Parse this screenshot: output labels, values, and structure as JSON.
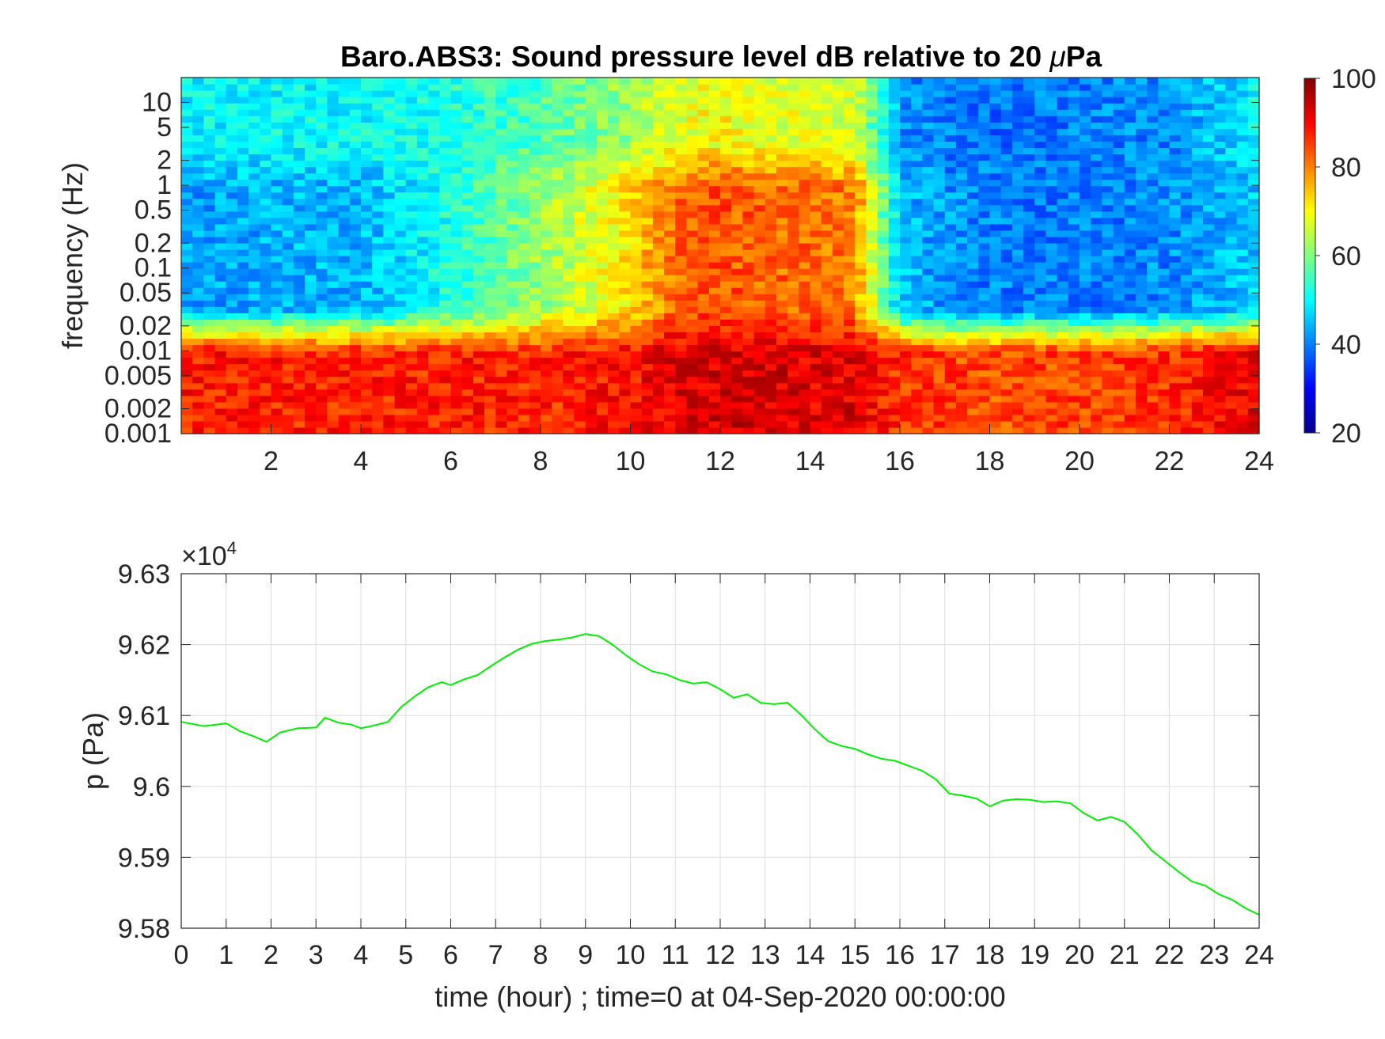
{
  "chart_data": [
    {
      "type": "heatmap",
      "title_parts": [
        "Baro.ABS3: Sound pressure level dB relative to 20 ",
        "μ",
        "Pa"
      ],
      "ylabel": "frequency (Hz)",
      "xlabel": "",
      "y_scale": "log",
      "yticks": [
        "10",
        "5",
        "2",
        "1",
        "0.5",
        "0.2",
        "0.1",
        "0.05",
        "0.02",
        "0.01",
        "0.005",
        "0.002",
        "0.001"
      ],
      "ytick_values": [
        10,
        5,
        2,
        1,
        0.5,
        0.2,
        0.1,
        0.05,
        0.02,
        0.01,
        0.005,
        0.002,
        0.001
      ],
      "ylim": [
        0.001,
        20
      ],
      "xticks": [
        "2",
        "4",
        "6",
        "8",
        "10",
        "12",
        "14",
        "16",
        "18",
        "20",
        "22",
        "24"
      ],
      "xtick_values": [
        2,
        4,
        6,
        8,
        10,
        12,
        14,
        16,
        18,
        20,
        22,
        24
      ],
      "xlim": [
        0,
        24
      ],
      "colormap": "jet",
      "colorbar": {
        "ticks": [
          "100",
          "80",
          "60",
          "40",
          "20"
        ],
        "tick_values": [
          100,
          80,
          60,
          40,
          20
        ],
        "clim": [
          20,
          100
        ]
      },
      "approx_level_by_hour": {
        "hours": [
          0,
          2,
          4,
          6,
          8,
          10,
          11,
          12,
          13,
          14,
          15,
          16,
          17,
          18,
          20,
          22,
          24
        ],
        "band_low_0.001_0.01Hz_dB": [
          88,
          88,
          87,
          88,
          87,
          89,
          92,
          93,
          93,
          92,
          92,
          86,
          85,
          84,
          85,
          86,
          92
        ],
        "band_mid_0.01_1Hz_dB": [
          42,
          44,
          44,
          52,
          62,
          72,
          82,
          84,
          82,
          82,
          80,
          45,
          42,
          40,
          40,
          41,
          46
        ],
        "band_high_1_20Hz_dB": [
          50,
          50,
          50,
          52,
          56,
          62,
          68,
          70,
          68,
          68,
          66,
          42,
          40,
          39,
          40,
          41,
          50
        ]
      }
    },
    {
      "type": "line",
      "ylabel": "p (Pa)",
      "xlabel": "time (hour) ; time=0 at 04-Sep-2020 00:00:00",
      "y_multiplier_base": "×10",
      "y_multiplier_exp": "4",
      "yticks": [
        "9.63",
        "9.62",
        "9.61",
        "9.6",
        "9.59",
        "9.58"
      ],
      "ytick_values": [
        9.63,
        9.62,
        9.61,
        9.6,
        9.59,
        9.58
      ],
      "ylim": [
        9.58,
        9.63
      ],
      "xticks": [
        "0",
        "1",
        "2",
        "3",
        "4",
        "5",
        "6",
        "7",
        "8",
        "9",
        "10",
        "11",
        "12",
        "13",
        "14",
        "15",
        "16",
        "17",
        "18",
        "19",
        "20",
        "21",
        "22",
        "23",
        "24"
      ],
      "xtick_values": [
        0,
        1,
        2,
        3,
        4,
        5,
        6,
        7,
        8,
        9,
        10,
        11,
        12,
        13,
        14,
        15,
        16,
        17,
        18,
        19,
        20,
        21,
        22,
        23,
        24
      ],
      "xlim": [
        0,
        24
      ],
      "grid": true,
      "line_color": "#00ee00",
      "series": [
        {
          "x": [
            0,
            0.5,
            1,
            1.3,
            1.6,
            1.9,
            2.2,
            2.6,
            3,
            3.2,
            3.5,
            3.8,
            4,
            4.3,
            4.6,
            4.9,
            5.2,
            5.5,
            5.8,
            6,
            6.3,
            6.6,
            6.9,
            7.2,
            7.5,
            7.8,
            8.1,
            8.4,
            8.7,
            9,
            9.3,
            9.6,
            9.9,
            10.2,
            10.5,
            10.8,
            11.1,
            11.4,
            11.7,
            12,
            12.3,
            12.6,
            12.9,
            13.2,
            13.5,
            13.8,
            14.1,
            14.4,
            14.7,
            15,
            15.3,
            15.6,
            15.9,
            16.2,
            16.5,
            16.8,
            17.1,
            17.4,
            17.7,
            18,
            18.3,
            18.6,
            18.9,
            19.2,
            19.5,
            19.8,
            20.1,
            20.4,
            20.7,
            21,
            21.3,
            21.6,
            21.9,
            22.2,
            22.5,
            22.8,
            23.1,
            23.4,
            23.7,
            24
          ],
          "y": [
            9.6091,
            9.6085,
            9.6089,
            9.6078,
            9.6071,
            9.6063,
            9.6076,
            9.6082,
            9.6083,
            9.6097,
            9.609,
            9.6087,
            9.6082,
            9.6086,
            9.6091,
            9.6112,
            9.6127,
            9.614,
            9.6147,
            9.6143,
            9.6151,
            9.6157,
            9.617,
            9.6182,
            9.6193,
            9.6201,
            9.6205,
            9.6207,
            9.621,
            9.6215,
            9.6212,
            9.62,
            9.6185,
            9.6172,
            9.6162,
            9.6158,
            9.615,
            9.6145,
            9.6147,
            9.6137,
            9.6125,
            9.613,
            9.6118,
            9.6116,
            9.6118,
            9.6101,
            9.6081,
            9.6064,
            9.6057,
            9.6053,
            9.6045,
            9.6039,
            9.6036,
            9.6029,
            9.6022,
            9.601,
            9.599,
            9.5987,
            9.5983,
            9.5972,
            9.598,
            9.5982,
            9.5981,
            9.5978,
            9.5979,
            9.5976,
            9.5962,
            9.5952,
            9.5957,
            9.595,
            9.5932,
            9.591,
            9.5895,
            9.588,
            9.5866,
            9.586,
            9.5848,
            9.584,
            9.5828,
            9.5819
          ]
        }
      ]
    }
  ]
}
